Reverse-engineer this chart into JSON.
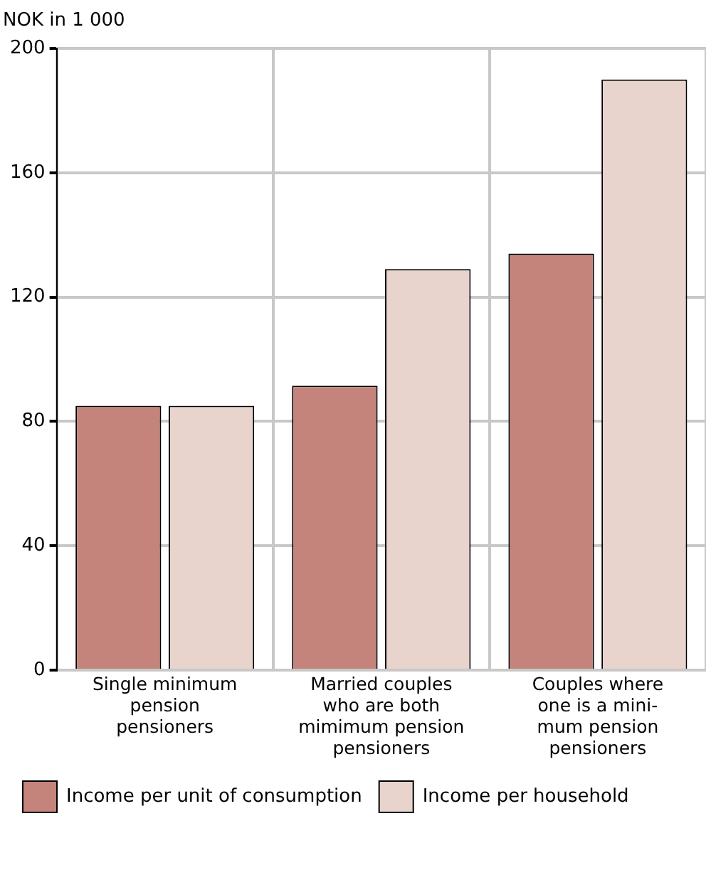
{
  "chart_data": {
    "type": "bar",
    "ylabel": "NOK in 1 000",
    "categories": [
      "Single minimum\npension\npensioners",
      "Married couples\nwho are both\nmimimum pension\npensioners",
      "Couples where\none is a mini-\nmum pension\npensioners"
    ],
    "series": [
      {
        "name": "Income per unit of consumption",
        "color": "#c4837b",
        "values": [
          85,
          91.5,
          134
        ]
      },
      {
        "name": "Income per household",
        "color": "#e9d4cd",
        "values": [
          85,
          129,
          190
        ]
      }
    ],
    "ylim": [
      0,
      200
    ],
    "yticks": [
      0,
      40,
      80,
      120,
      160,
      200
    ],
    "grid": true,
    "legend": "bottom"
  }
}
